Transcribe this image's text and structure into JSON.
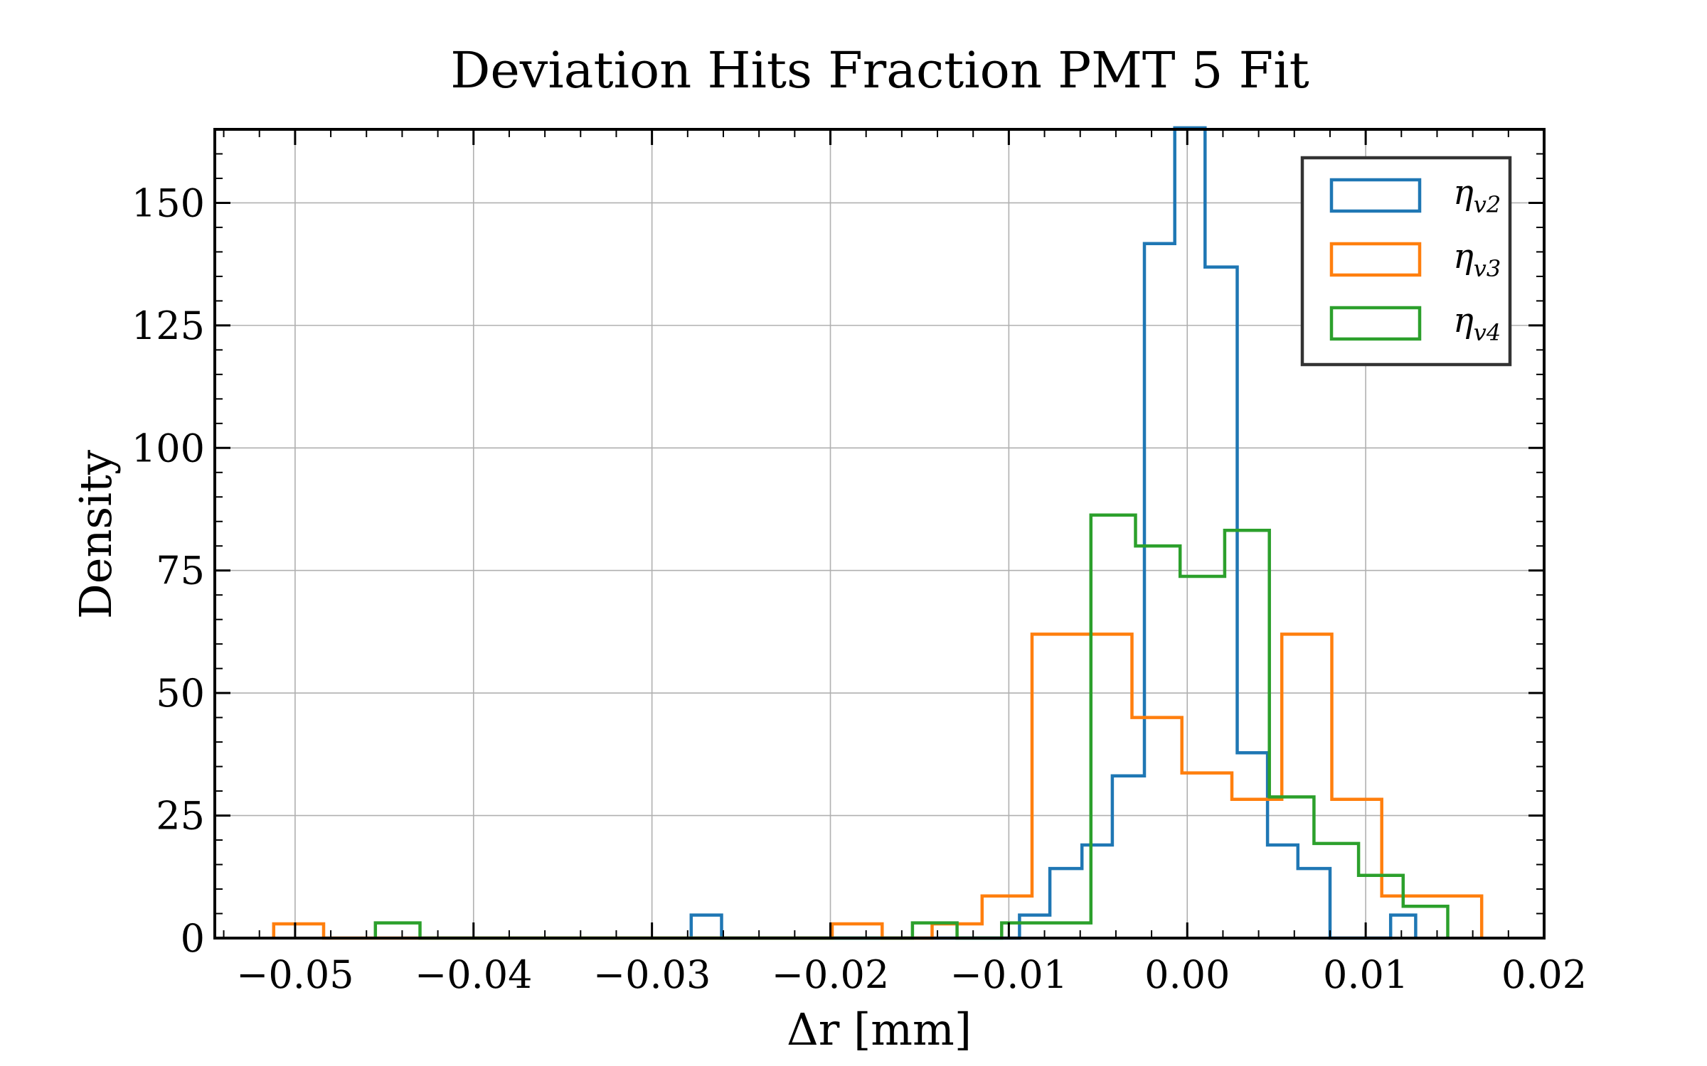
{
  "chart_data": {
    "type": "histogram",
    "title": "Deviation Hits Fraction PMT 5 Fit",
    "xlabel": "Δr [mm]",
    "ylabel": "Density",
    "xlim": [
      -0.0545,
      0.02
    ],
    "ylim": [
      0,
      165
    ],
    "xticks": [
      -0.05,
      -0.04,
      -0.03,
      -0.02,
      -0.01,
      0.0,
      0.01,
      0.02
    ],
    "xtick_labels": [
      "−0.05",
      "−0.04",
      "−0.03",
      "−0.02",
      "−0.01",
      "0.00",
      "0.01",
      "0.02"
    ],
    "yticks": [
      0,
      25,
      50,
      75,
      100,
      125,
      150
    ],
    "ytick_labels": [
      "0",
      "25",
      "50",
      "75",
      "100",
      "125",
      "150"
    ],
    "grid": true,
    "legend_position": "top-right",
    "series": [
      {
        "name": "ηv2",
        "legend_main": "η",
        "legend_sub": "v2",
        "color": "#1f77b4",
        "bins": [
          [
            -0.0278,
            -0.0261,
            4.7
          ],
          [
            -0.0261,
            -0.0094,
            0
          ],
          [
            -0.0094,
            -0.0077,
            4.7
          ],
          [
            -0.0077,
            -0.0059,
            14.2
          ],
          [
            -0.0059,
            -0.0042,
            19.0
          ],
          [
            -0.0042,
            -0.0024,
            33.1
          ],
          [
            -0.0024,
            -0.0007,
            141.7
          ],
          [
            -0.0007,
            0.001,
            165.3
          ],
          [
            0.001,
            0.0028,
            136.9
          ],
          [
            0.0028,
            0.0045,
            37.8
          ],
          [
            0.0045,
            0.0062,
            19.0
          ],
          [
            0.0062,
            0.008,
            14.2
          ],
          [
            0.008,
            0.0114,
            0
          ],
          [
            0.0114,
            0.0128,
            4.7
          ]
        ]
      },
      {
        "name": "ηv3",
        "legend_main": "η",
        "legend_sub": "v3",
        "color": "#ff7f0e",
        "bins": [
          [
            -0.0512,
            -0.0484,
            2.9
          ],
          [
            -0.0484,
            -0.0199,
            0
          ],
          [
            -0.0199,
            -0.0171,
            2.9
          ],
          [
            -0.0171,
            -0.0143,
            0
          ],
          [
            -0.0143,
            -0.0115,
            2.9
          ],
          [
            -0.0115,
            -0.0087,
            8.6
          ],
          [
            -0.0087,
            -0.0059,
            62.0
          ],
          [
            -0.0059,
            -0.0031,
            62.0
          ],
          [
            -0.0031,
            -0.0003,
            45.0
          ],
          [
            -0.0003,
            0.0025,
            33.7
          ],
          [
            0.0025,
            0.0053,
            28.3
          ],
          [
            0.0053,
            0.0081,
            62.0
          ],
          [
            0.0081,
            0.0109,
            28.3
          ],
          [
            0.0109,
            0.0137,
            8.6
          ],
          [
            0.0137,
            0.0165,
            8.6
          ]
        ]
      },
      {
        "name": "ηv4",
        "legend_main": "η",
        "legend_sub": "v4",
        "color": "#2ca02c",
        "bins": [
          [
            -0.0455,
            -0.043,
            3.1
          ],
          [
            -0.043,
            -0.0154,
            0
          ],
          [
            -0.0154,
            -0.0129,
            3.1
          ],
          [
            -0.0129,
            -0.0104,
            0
          ],
          [
            -0.0104,
            -0.0079,
            3.1
          ],
          [
            -0.0079,
            -0.0054,
            3.1
          ],
          [
            -0.0054,
            -0.0029,
            86.3
          ],
          [
            -0.0029,
            -0.0004,
            80.0
          ],
          [
            -0.0004,
            0.0021,
            73.8
          ],
          [
            0.0021,
            0.0046,
            83.2
          ],
          [
            0.0046,
            0.0071,
            28.8
          ],
          [
            0.0071,
            0.0096,
            19.3
          ],
          [
            0.0096,
            0.0121,
            12.8
          ],
          [
            0.0121,
            0.0146,
            6.5
          ]
        ]
      }
    ]
  }
}
